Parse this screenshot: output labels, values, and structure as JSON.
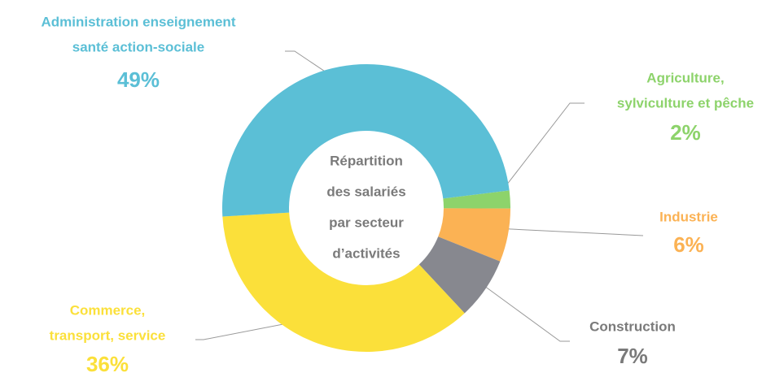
{
  "chart_data": {
    "type": "donut",
    "title": [
      "Répartition",
      "des salariés",
      "par secteur",
      "d’activités"
    ],
    "categories": [
      [
        "Agriculture,",
        "sylviculture et pêche"
      ],
      [
        "Industrie"
      ],
      [
        "Construction"
      ],
      [
        "Commerce,",
        "transport, service"
      ],
      [
        "Administration enseignement",
        "santé action-sociale"
      ]
    ],
    "values": [
      2,
      6,
      7,
      36,
      49
    ],
    "value_labels": [
      "2%",
      "6%",
      "7%",
      "36%",
      "49%"
    ],
    "colors": [
      "#8dd36b",
      "#fbb254",
      "#87888f",
      "#fbe03a",
      "#5bbfd6"
    ]
  }
}
